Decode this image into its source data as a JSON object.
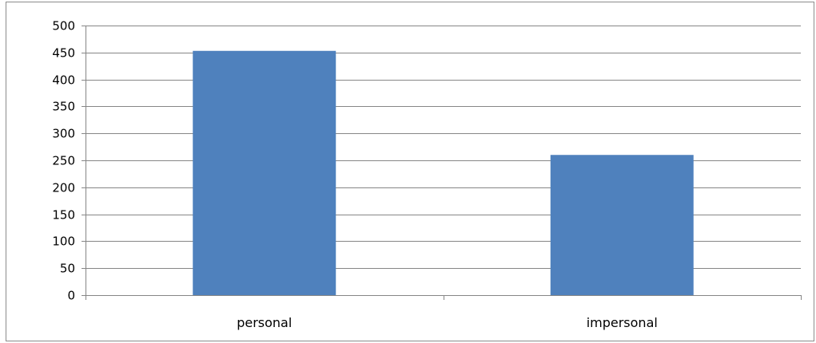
{
  "chart_data": {
    "type": "bar",
    "categories": [
      "personal",
      "impersonal"
    ],
    "values": [
      453,
      260
    ],
    "title": "",
    "xlabel": "",
    "ylabel": "",
    "ylim": [
      0,
      500
    ],
    "yticks": [
      0,
      50,
      100,
      150,
      200,
      250,
      300,
      350,
      400,
      450,
      500
    ],
    "grid": true,
    "legend": "none",
    "bar_color": "#4f81bd",
    "gridline_color": "#868686"
  }
}
